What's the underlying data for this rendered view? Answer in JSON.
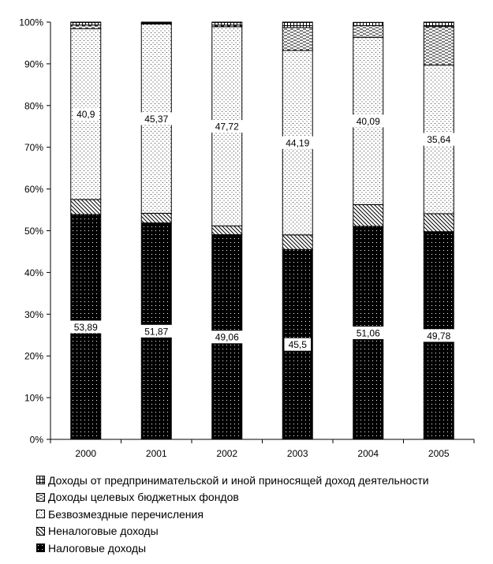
{
  "chart_data": {
    "type": "bar",
    "stacked": true,
    "percent": true,
    "categories": [
      "2000",
      "2001",
      "2002",
      "2003",
      "2004",
      "2005"
    ],
    "y_ticks": [
      "0%",
      "10%",
      "20%",
      "30%",
      "40%",
      "50%",
      "60%",
      "70%",
      "80%",
      "90%",
      "100%"
    ],
    "ylim": [
      0,
      100
    ],
    "grid": false,
    "legend_position": "bottom",
    "series": [
      {
        "name": "Налоговые доходы",
        "pattern": "black-dots",
        "values": [
          53.89,
          51.87,
          49.06,
          45.5,
          51.06,
          49.78
        ],
        "labels": [
          "53,89",
          "51,87",
          "49,06",
          "45,5",
          "51,06",
          "49,78"
        ]
      },
      {
        "name": "Неналоговые доходы",
        "pattern": "diagonal-hatch",
        "values": [
          3.6,
          2.3,
          2.1,
          3.5,
          5.2,
          4.3
        ]
      },
      {
        "name": "Безвозмездные перечисления",
        "pattern": "sparse-dots",
        "values": [
          40.9,
          45.37,
          47.72,
          44.19,
          40.09,
          35.64
        ],
        "labels": [
          "40,9",
          "45,37",
          "47,72",
          "44,19",
          "40,09",
          "35,64"
        ]
      },
      {
        "name": "Доходы целевых бюджетных фондов",
        "pattern": "dashes",
        "values": [
          0.9,
          0.2,
          0.4,
          5.5,
          2.8,
          9.2
        ]
      },
      {
        "name": "Доходы от предпринимательской и иной приносящей доход деятельности",
        "pattern": "grid",
        "values": [
          0.71,
          0.26,
          0.72,
          1.31,
          0.79,
          1.08
        ]
      }
    ],
    "colors": {
      "bar_fill": "#ffffff",
      "ink": "#000000"
    }
  }
}
